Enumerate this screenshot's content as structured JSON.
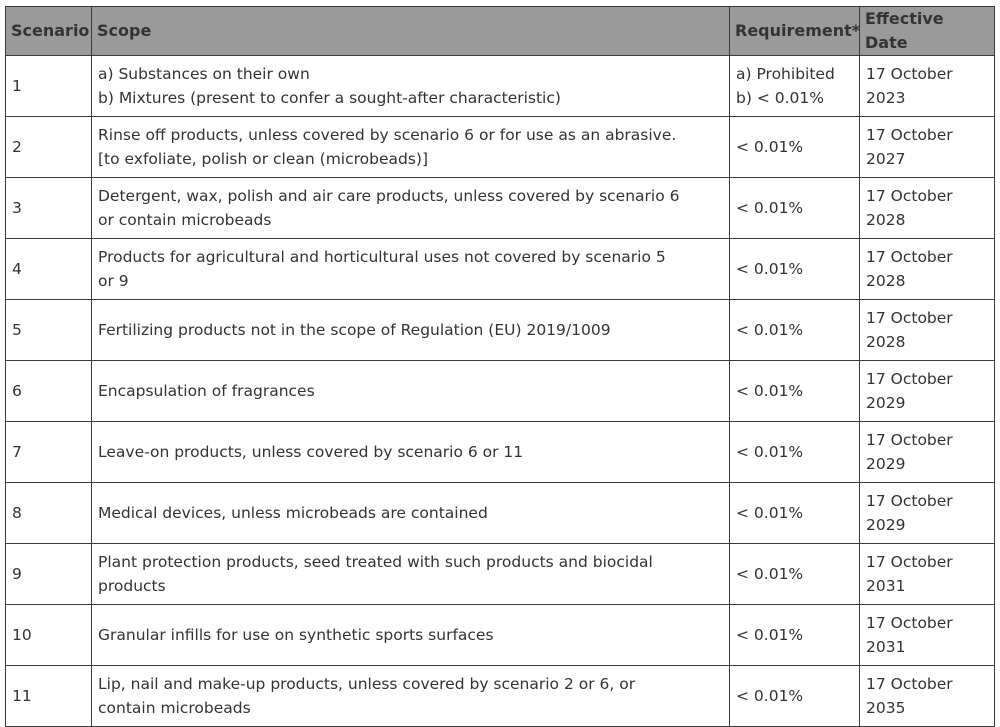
{
  "headers": [
    "Scenario",
    "Scope",
    "Requirement*",
    "Effective Date"
  ],
  "rows": [
    {
      "scenario": "1",
      "scope": [
        "a) Substances on their own",
        "b) Mixtures (present to confer a sought-after characteristic)"
      ],
      "requirement": [
        "a) Prohibited",
        "b) < 0.01%"
      ],
      "date": [
        "17 October",
        "2023"
      ]
    },
    {
      "scenario": "2",
      "scope": [
        "Rinse off products, unless covered by scenario 6 or for use as an abrasive.",
        "[to exfoliate, polish or clean (microbeads)]"
      ],
      "requirement": [
        "< 0.01%"
      ],
      "date": [
        "17 October",
        "2027"
      ]
    },
    {
      "scenario": "3",
      "scope": [
        "Detergent, wax, polish and air care products, unless covered by scenario 6",
        "or contain microbeads"
      ],
      "requirement": [
        "< 0.01%"
      ],
      "date": [
        "17 October",
        "2028"
      ]
    },
    {
      "scenario": "4",
      "scope": [
        "Products for agricultural and horticultural uses not covered by scenario 5",
        "or 9"
      ],
      "requirement": [
        "< 0.01%"
      ],
      "date": [
        "17 October",
        "2028"
      ]
    },
    {
      "scenario": "5",
      "scope": [
        "Fertilizing products not in the scope of Regulation (EU) 2019/1009"
      ],
      "requirement": [
        "< 0.01%"
      ],
      "date": [
        "17 October",
        "2028"
      ]
    },
    {
      "scenario": "6",
      "scope": [
        "Encapsulation of fragrances"
      ],
      "requirement": [
        "< 0.01%"
      ],
      "date": [
        "17 October",
        "2029"
      ]
    },
    {
      "scenario": "7",
      "scope": [
        "Leave-on products, unless covered by scenario 6 or 11"
      ],
      "requirement": [
        "< 0.01%"
      ],
      "date": [
        "17 October",
        "2029"
      ]
    },
    {
      "scenario": "8",
      "scope": [
        "Medical devices, unless microbeads are contained"
      ],
      "requirement": [
        "< 0.01%"
      ],
      "date": [
        "17 October",
        "2029"
      ]
    },
    {
      "scenario": "9",
      "scope": [
        "Plant protection products, seed treated with such products and biocidal",
        "products"
      ],
      "requirement": [
        "< 0.01%"
      ],
      "date": [
        "17 October",
        "2031"
      ]
    },
    {
      "scenario": "10",
      "scope": [
        "Granular infills for use on synthetic sports surfaces"
      ],
      "requirement": [
        "< 0.01%"
      ],
      "date": [
        "17 October",
        "2031"
      ]
    },
    {
      "scenario": "11",
      "scope": [
        "Lip, nail and make-up products, unless covered by scenario 2 or 6, or",
        "contain microbeads"
      ],
      "requirement": [
        "< 0.01%"
      ],
      "date": [
        "17 October",
        "2035"
      ]
    }
  ],
  "colors": {
    "header_bg": "#9a9a9a",
    "text": "#333333",
    "border": "#3a3a3a"
  }
}
